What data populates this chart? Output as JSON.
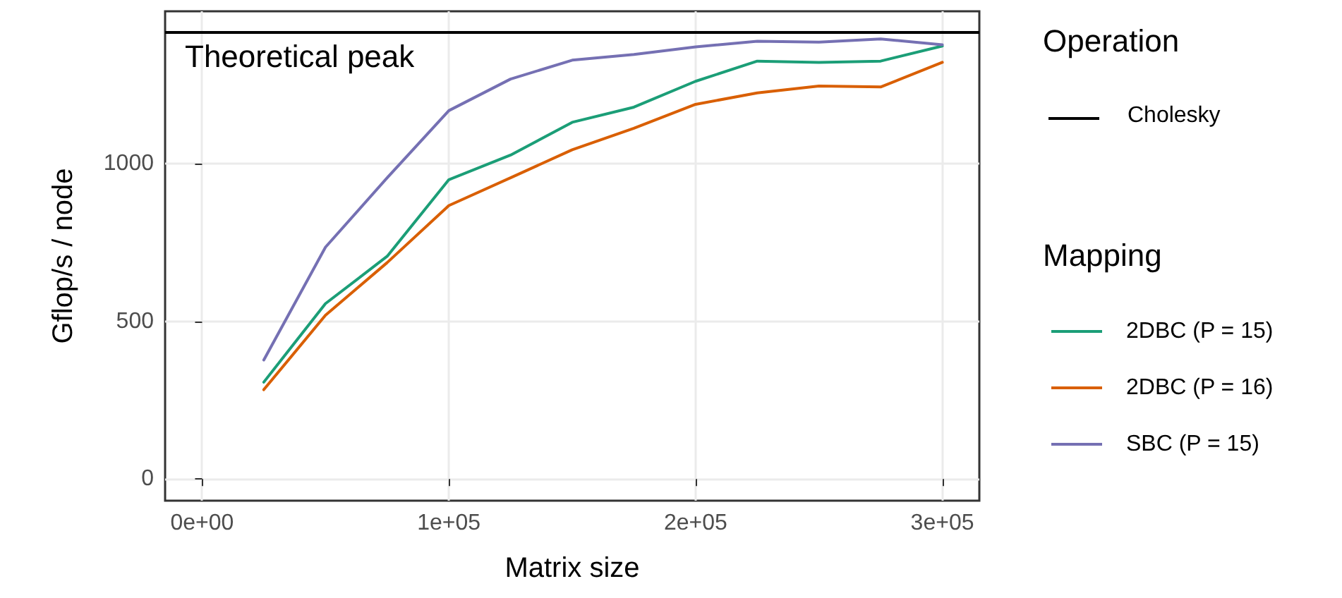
{
  "chart_data": {
    "type": "line",
    "xlabel": "Matrix size",
    "ylabel": "Gflop/s / node",
    "legend_title": "Mapping",
    "x": [
      25000,
      50000,
      75000,
      100000,
      125000,
      150000,
      175000,
      200000,
      225000,
      250000,
      275000,
      300000
    ],
    "series": [
      {
        "name": "2DBC (P = 15)",
        "color": "#1b9e77",
        "values": [
          307,
          556,
          706,
          949,
          1027,
          1131,
          1179,
          1261,
          1325,
          1321,
          1325,
          1373
        ]
      },
      {
        "name": "2DBC (P = 16)",
        "color": "#d95f02",
        "values": [
          283,
          519,
          686,
          867,
          955,
          1044,
          1112,
          1188,
          1224,
          1246,
          1243,
          1321
        ]
      },
      {
        "name": "SBC (P = 15)",
        "color": "#7570b3",
        "values": [
          377,
          735,
          955,
          1168,
          1268,
          1328,
          1346,
          1370,
          1388,
          1385,
          1395,
          1377
        ]
      }
    ],
    "xlim": [
      -15000,
      315000
    ],
    "xticks": [
      {
        "value": 0,
        "label": "0e+00"
      },
      {
        "value": 100000,
        "label": "1e+05"
      },
      {
        "value": 200000,
        "label": "2e+05"
      },
      {
        "value": 300000,
        "label": "3e+05"
      }
    ],
    "ylim": [
      -69,
      1483
    ],
    "yticks": [
      0,
      500,
      1000
    ],
    "ref_lines": [
      {
        "axis": "y",
        "value": 1416,
        "label": "Theoretical peak",
        "color": "#000000"
      }
    ],
    "annotations": [
      "Operation",
      "Cholesky"
    ],
    "grid": true,
    "legend": "right",
    "line_style": "solid",
    "marker": "none"
  }
}
